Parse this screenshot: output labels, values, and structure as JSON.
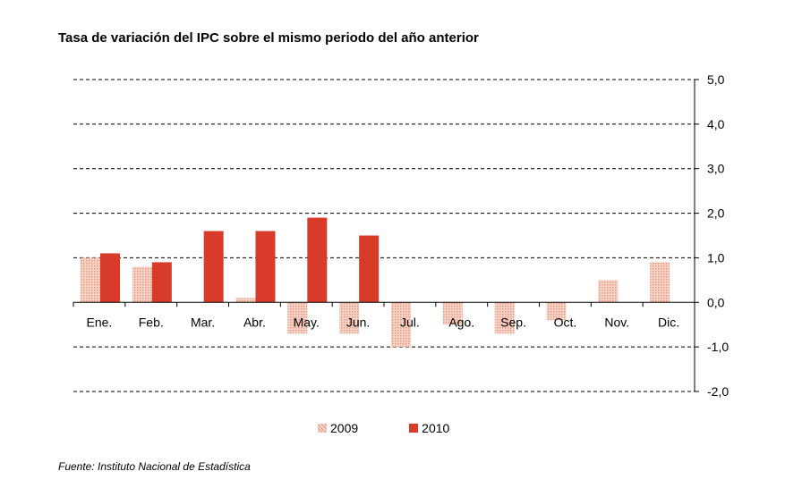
{
  "title": "Tasa de variación del IPC sobre el mismo periodo del año anterior",
  "source": "Fuente: Instituto Nacional de Estadística",
  "colors": {
    "series_2009": "#f2b8a6",
    "series_2010": "#d93b2b",
    "grid": "#000000"
  },
  "chart_data": {
    "type": "bar",
    "categories": [
      "Ene.",
      "Feb.",
      "Mar.",
      "Abr.",
      "May.",
      "Jun.",
      "Jul.",
      "Ago.",
      "Sep.",
      "Oct.",
      "Nov.",
      "Dic."
    ],
    "series": [
      {
        "name": "2009",
        "values": [
          1.0,
          0.8,
          0.0,
          0.1,
          -0.7,
          -0.7,
          -1.0,
          -0.5,
          -0.7,
          -0.4,
          0.5,
          0.9
        ]
      },
      {
        "name": "2010",
        "values": [
          1.1,
          0.9,
          1.6,
          1.6,
          1.9,
          1.5,
          null,
          null,
          null,
          null,
          null,
          null
        ]
      }
    ],
    "ylim": [
      -2.0,
      5.0
    ],
    "yticks": [
      "5,0",
      "4,0",
      "3,0",
      "2,0",
      "1,0",
      "0,0",
      "-1,0",
      "-2,0"
    ],
    "ytick_values": [
      5,
      4,
      3,
      2,
      1,
      0,
      -1,
      -2
    ],
    "grid": true,
    "yaxis_position": "right",
    "legend_position": "bottom"
  }
}
